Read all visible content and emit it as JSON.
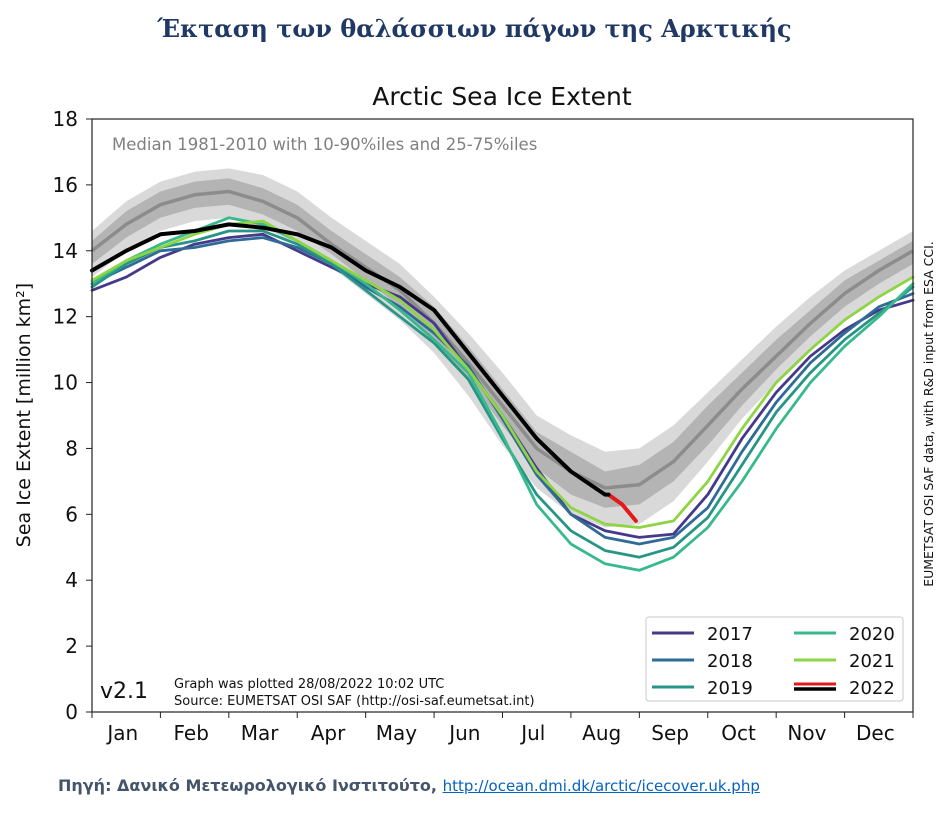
{
  "page_heading": "Έκταση των θαλάσσιων πάγων της Αρκτικής",
  "source": {
    "label": "Πηγή: Δανικό Μετεωρολογικό Ινστιτούτο,",
    "link_text": "http://ocean.dmi.dk/arctic/icecover.uk.php"
  },
  "chart_data": {
    "type": "line",
    "title": "Arctic Sea Ice Extent",
    "subtitle": "Median 1981-2010 with 10-90%iles and 25-75%iles",
    "ylabel": "Sea Ice Extent [million km²]",
    "ylim": [
      0,
      18
    ],
    "yticks": [
      0,
      2,
      4,
      6,
      8,
      10,
      12,
      14,
      16,
      18
    ],
    "xlim": [
      0,
      12
    ],
    "months": [
      "Jan",
      "Feb",
      "Mar",
      "Apr",
      "May",
      "Jun",
      "Jul",
      "Aug",
      "Sep",
      "Oct",
      "Nov",
      "Dec"
    ],
    "version": "v2.1",
    "plot_note_1": "Graph was plotted 28/08/2022 10:02 UTC",
    "plot_note_2": "Source: EUMETSAT OSI SAF (http://osi-saf.eumetsat.int)",
    "side_note": "EUMETSAT OSI SAF data, with R&D input from ESA CCI.",
    "legend_position": "lower-right",
    "bands": {
      "x": [
        0,
        0.5,
        1,
        1.5,
        2,
        2.5,
        3,
        3.5,
        4,
        4.5,
        5,
        5.5,
        6,
        6.5,
        7,
        7.5,
        8,
        8.5,
        9,
        9.5,
        10,
        10.5,
        11,
        11.5,
        12
      ],
      "median": [
        14.0,
        14.8,
        15.4,
        15.7,
        15.8,
        15.5,
        15.0,
        14.2,
        13.5,
        12.8,
        11.8,
        10.6,
        9.3,
        8.0,
        7.3,
        6.8,
        6.9,
        7.6,
        8.7,
        9.8,
        10.8,
        11.8,
        12.7,
        13.4,
        14.0
      ],
      "p25": [
        13.6,
        14.4,
        15.0,
        15.3,
        15.4,
        15.1,
        14.6,
        13.9,
        13.1,
        12.3,
        11.3,
        10.1,
        8.7,
        7.4,
        6.6,
        6.2,
        6.3,
        7.0,
        8.1,
        9.3,
        10.4,
        11.4,
        12.3,
        13.0,
        13.6
      ],
      "p75": [
        14.3,
        15.2,
        15.8,
        16.1,
        16.2,
        15.9,
        15.4,
        14.6,
        13.9,
        13.2,
        12.3,
        11.1,
        9.8,
        8.5,
        7.9,
        7.3,
        7.5,
        8.2,
        9.3,
        10.3,
        11.3,
        12.2,
        13.1,
        13.7,
        14.3
      ],
      "p10": [
        13.2,
        14.0,
        14.6,
        14.9,
        15.0,
        14.7,
        14.2,
        13.5,
        12.7,
        11.9,
        10.9,
        9.6,
        8.1,
        6.8,
        6.0,
        5.6,
        5.7,
        6.4,
        7.6,
        8.9,
        10.0,
        11.0,
        11.9,
        12.6,
        13.2
      ],
      "p90": [
        14.6,
        15.5,
        16.1,
        16.4,
        16.5,
        16.3,
        15.8,
        15.0,
        14.3,
        13.6,
        12.6,
        11.5,
        10.3,
        9.0,
        8.4,
        7.9,
        8.0,
        8.7,
        9.7,
        10.7,
        11.7,
        12.6,
        13.4,
        14.0,
        14.6
      ]
    },
    "series": [
      {
        "name": "2017",
        "color": "#453a8a",
        "x": [
          0,
          0.5,
          1,
          1.5,
          2,
          2.5,
          3,
          3.5,
          4,
          4.5,
          5,
          5.5,
          6,
          6.5,
          7,
          7.5,
          8,
          8.5,
          9,
          9.5,
          10,
          10.5,
          11,
          11.5,
          12
        ],
        "y": [
          12.8,
          13.2,
          13.8,
          14.2,
          14.4,
          14.5,
          14.0,
          13.5,
          13.0,
          12.6,
          11.8,
          10.4,
          9.0,
          7.4,
          6.0,
          5.5,
          5.3,
          5.4,
          6.6,
          8.3,
          9.7,
          10.8,
          11.6,
          12.2,
          12.5
        ]
      },
      {
        "name": "2018",
        "color": "#2f6b96",
        "x": [
          0,
          0.5,
          1,
          1.5,
          2,
          2.5,
          3,
          3.5,
          4,
          4.5,
          5,
          5.5,
          6,
          6.5,
          7,
          7.5,
          8,
          8.5,
          9,
          9.5,
          10,
          10.5,
          11,
          11.5,
          12
        ],
        "y": [
          13.0,
          13.5,
          14.0,
          14.1,
          14.3,
          14.4,
          14.1,
          13.6,
          12.9,
          12.3,
          11.5,
          10.5,
          8.9,
          7.2,
          6.0,
          5.3,
          5.1,
          5.3,
          6.2,
          7.9,
          9.4,
          10.6,
          11.5,
          12.3,
          12.7
        ]
      },
      {
        "name": "2019",
        "color": "#279585",
        "x": [
          0,
          0.5,
          1,
          1.5,
          2,
          2.5,
          3,
          3.5,
          4,
          4.5,
          5,
          5.5,
          6,
          6.5,
          7,
          7.5,
          8,
          8.5,
          9,
          9.5,
          10,
          10.5,
          11,
          11.5,
          12
        ],
        "y": [
          12.9,
          13.6,
          14.1,
          14.3,
          14.6,
          14.6,
          14.2,
          13.6,
          12.8,
          12.0,
          11.2,
          10.1,
          8.3,
          6.6,
          5.5,
          4.9,
          4.7,
          5.0,
          5.9,
          7.5,
          9.1,
          10.3,
          11.3,
          12.1,
          12.9
        ]
      },
      {
        "name": "2020",
        "color": "#38b98c",
        "x": [
          0,
          0.5,
          1,
          1.5,
          2,
          2.5,
          3,
          3.5,
          4,
          4.5,
          5,
          5.5,
          6,
          6.5,
          7,
          7.5,
          8,
          8.5,
          9,
          9.5,
          10,
          10.5,
          11,
          11.5,
          12
        ],
        "y": [
          13.0,
          13.7,
          14.2,
          14.6,
          15.0,
          14.8,
          14.3,
          13.7,
          13.0,
          12.2,
          11.3,
          10.3,
          8.4,
          6.3,
          5.1,
          4.5,
          4.3,
          4.7,
          5.6,
          7.0,
          8.6,
          10.0,
          11.1,
          12.0,
          13.0
        ]
      },
      {
        "name": "2021",
        "color": "#8fd444",
        "x": [
          0,
          0.5,
          1,
          1.5,
          2,
          2.5,
          3,
          3.5,
          4,
          4.5,
          5,
          5.5,
          6,
          6.5,
          7,
          7.5,
          8,
          8.5,
          9,
          9.5,
          10,
          10.5,
          11,
          11.5,
          12
        ],
        "y": [
          13.1,
          13.7,
          14.1,
          14.5,
          14.8,
          14.9,
          14.3,
          13.7,
          13.1,
          12.5,
          11.6,
          10.4,
          9.0,
          7.3,
          6.2,
          5.7,
          5.6,
          5.8,
          7.0,
          8.6,
          10.0,
          11.0,
          11.9,
          12.6,
          13.2
        ]
      },
      {
        "name": "2022",
        "color": "#e31a1c",
        "x": [
          7.55,
          7.75,
          7.95
        ],
        "y": [
          6.6,
          6.3,
          5.8
        ]
      },
      {
        "name": "2022",
        "color": "#000000",
        "x": [
          0,
          0.5,
          1,
          1.5,
          2,
          2.5,
          3,
          3.5,
          4,
          4.5,
          5,
          5.5,
          6,
          6.5,
          7,
          7.5,
          7.55
        ],
        "y": [
          13.4,
          14.0,
          14.5,
          14.6,
          14.8,
          14.7,
          14.5,
          14.1,
          13.4,
          12.9,
          12.2,
          10.9,
          9.6,
          8.3,
          7.3,
          6.6,
          6.6
        ]
      }
    ],
    "legend": [
      {
        "label": "2017",
        "color": "#453a8a"
      },
      {
        "label": "2018",
        "color": "#2f6b96"
      },
      {
        "label": "2019",
        "color": "#279585"
      },
      {
        "label": "2020",
        "color": "#38b98c"
      },
      {
        "label": "2021",
        "color": "#8fd444"
      },
      {
        "label": "2022",
        "color": "#000000",
        "color2": "#e31a1c"
      }
    ]
  }
}
